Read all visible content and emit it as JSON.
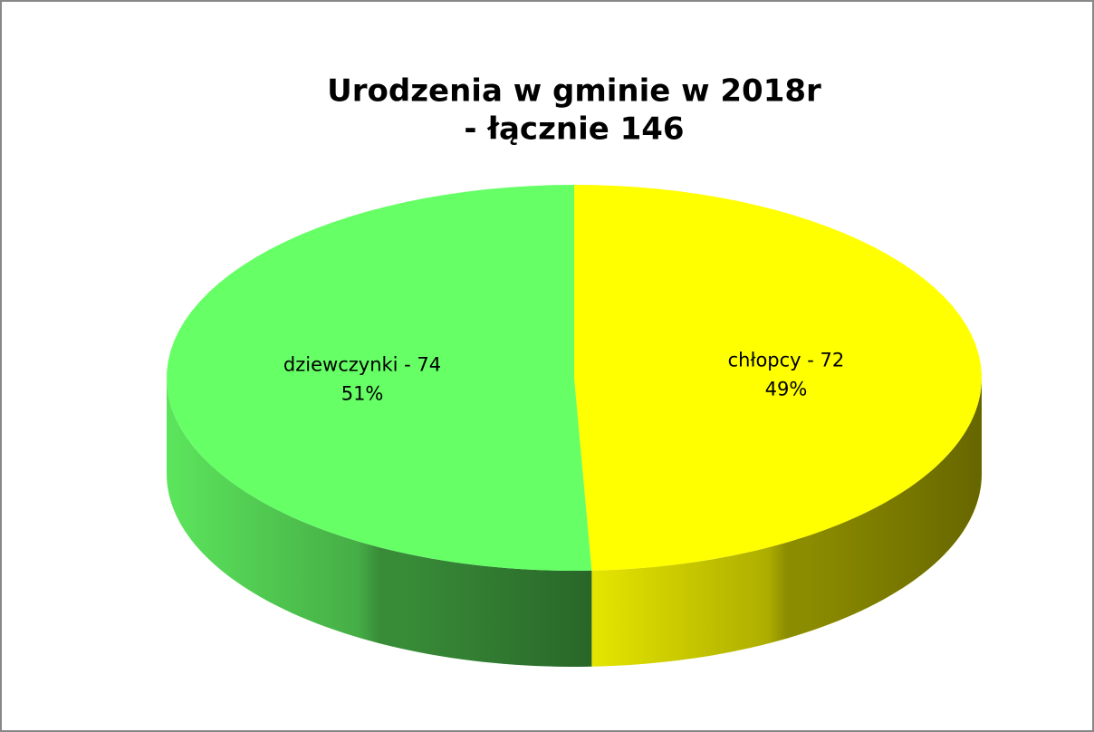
{
  "chart_data": {
    "type": "pie3d",
    "title": [
      "Urodzenia w gminie w 2018r",
      "- łącznie 146"
    ],
    "categories": [
      "chłopcy",
      "dziewczynki"
    ],
    "values": [
      72,
      74
    ],
    "value_labels": [
      "chłopcy - 72",
      "dziewczynki - 74"
    ],
    "percent_labels": [
      "49%",
      "51%"
    ],
    "colors": [
      "#ffff00",
      "#66ff66"
    ]
  }
}
